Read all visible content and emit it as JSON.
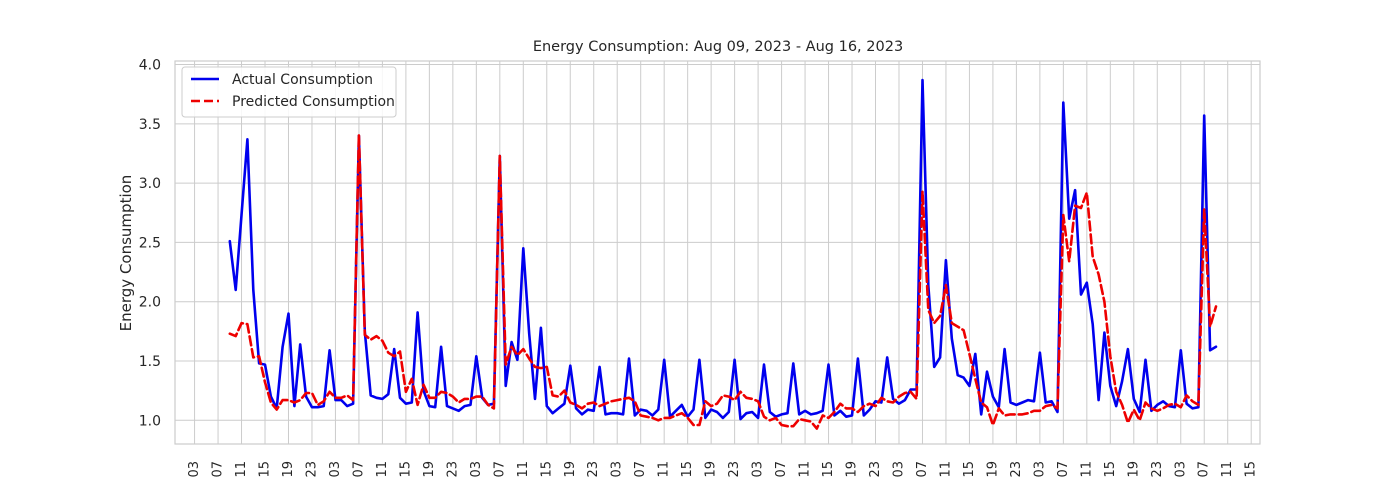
{
  "chart_data": {
    "type": "line",
    "title": "Energy Consumption: Aug 09, 2023 - Aug 16, 2023",
    "xlabel": "",
    "ylabel": "Energy Consumption",
    "ylim": [
      0.8,
      4.03
    ],
    "yticks": [
      1.0,
      1.5,
      2.0,
      2.5,
      3.0,
      3.5,
      4.0
    ],
    "ytick_labels": [
      "1.0",
      "1.5",
      "2.0",
      "2.5",
      "3.0",
      "3.5",
      "4.0"
    ],
    "xlim": [
      "2023-08-08T23:40",
      "2023-08-16T16:30"
    ],
    "xticks": [
      "2023-08-09T03:00",
      "2023-08-09T07:00",
      "2023-08-09T11:00",
      "2023-08-09T15:00",
      "2023-08-09T19:00",
      "2023-08-09T23:00",
      "2023-08-10T03:00",
      "2023-08-10T07:00",
      "2023-08-10T11:00",
      "2023-08-10T15:00",
      "2023-08-10T19:00",
      "2023-08-10T23:00",
      "2023-08-11T03:00",
      "2023-08-11T07:00",
      "2023-08-11T11:00",
      "2023-08-11T15:00",
      "2023-08-11T19:00",
      "2023-08-11T23:00",
      "2023-08-12T03:00",
      "2023-08-12T07:00",
      "2023-08-12T11:00",
      "2023-08-12T15:00",
      "2023-08-12T19:00",
      "2023-08-12T23:00",
      "2023-08-13T03:00",
      "2023-08-13T07:00",
      "2023-08-13T11:00",
      "2023-08-13T15:00",
      "2023-08-13T19:00",
      "2023-08-13T23:00",
      "2023-08-14T03:00",
      "2023-08-14T07:00",
      "2023-08-14T11:00",
      "2023-08-14T15:00",
      "2023-08-14T19:00",
      "2023-08-14T23:00",
      "2023-08-15T03:00",
      "2023-08-15T07:00",
      "2023-08-15T11:00",
      "2023-08-15T15:00",
      "2023-08-15T19:00",
      "2023-08-15T23:00",
      "2023-08-16T03:00",
      "2023-08-16T07:00",
      "2023-08-16T11:00",
      "2023-08-16T15:00"
    ],
    "xtick_labels": [
      "03",
      "07",
      "11",
      "15",
      "19",
      "23",
      "03",
      "07",
      "11",
      "15",
      "19",
      "23",
      "03",
      "07",
      "11",
      "15",
      "19",
      "23",
      "03",
      "07",
      "11",
      "15",
      "19",
      "23",
      "03",
      "07",
      "11",
      "15",
      "19",
      "23",
      "03",
      "07",
      "11",
      "15",
      "19",
      "23",
      "03",
      "07",
      "11",
      "15",
      "19",
      "23",
      "03",
      "07",
      "11",
      "15"
    ],
    "grid": true,
    "legend": {
      "position": "top-left",
      "entries": [
        "Actual Consumption",
        "Predicted Consumption"
      ]
    },
    "x": [
      "2023-08-09T09:00",
      "2023-08-09T10:00",
      "2023-08-09T11:00",
      "2023-08-09T12:00",
      "2023-08-09T13:00",
      "2023-08-09T14:00",
      "2023-08-09T15:00",
      "2023-08-09T16:00",
      "2023-08-09T17:00",
      "2023-08-09T18:00",
      "2023-08-09T19:00",
      "2023-08-09T20:00",
      "2023-08-09T21:00",
      "2023-08-09T22:00",
      "2023-08-09T23:00",
      "2023-08-10T00:00",
      "2023-08-10T01:00",
      "2023-08-10T02:00",
      "2023-08-10T03:00",
      "2023-08-10T04:00",
      "2023-08-10T05:00",
      "2023-08-10T06:00",
      "2023-08-10T07:00",
      "2023-08-10T08:00",
      "2023-08-10T09:00",
      "2023-08-10T10:00",
      "2023-08-10T11:00",
      "2023-08-10T12:00",
      "2023-08-10T13:00",
      "2023-08-10T14:00",
      "2023-08-10T15:00",
      "2023-08-10T16:00",
      "2023-08-10T17:00",
      "2023-08-10T18:00",
      "2023-08-10T19:00",
      "2023-08-10T20:00",
      "2023-08-10T21:00",
      "2023-08-10T22:00",
      "2023-08-10T23:00",
      "2023-08-11T00:00",
      "2023-08-11T01:00",
      "2023-08-11T02:00",
      "2023-08-11T03:00",
      "2023-08-11T04:00",
      "2023-08-11T05:00",
      "2023-08-11T06:00",
      "2023-08-11T07:00",
      "2023-08-11T08:00",
      "2023-08-11T09:00",
      "2023-08-11T10:00",
      "2023-08-11T11:00",
      "2023-08-11T12:00",
      "2023-08-11T13:00",
      "2023-08-11T14:00",
      "2023-08-11T15:00",
      "2023-08-11T16:00",
      "2023-08-11T17:00",
      "2023-08-11T18:00",
      "2023-08-11T19:00",
      "2023-08-11T20:00",
      "2023-08-11T21:00",
      "2023-08-11T22:00",
      "2023-08-11T23:00",
      "2023-08-12T00:00",
      "2023-08-12T01:00",
      "2023-08-12T02:00",
      "2023-08-12T03:00",
      "2023-08-12T04:00",
      "2023-08-12T05:00",
      "2023-08-12T06:00",
      "2023-08-12T07:00",
      "2023-08-12T08:00",
      "2023-08-12T09:00",
      "2023-08-12T10:00",
      "2023-08-12T11:00",
      "2023-08-12T12:00",
      "2023-08-12T13:00",
      "2023-08-12T14:00",
      "2023-08-12T15:00",
      "2023-08-12T16:00",
      "2023-08-12T17:00",
      "2023-08-12T18:00",
      "2023-08-12T19:00",
      "2023-08-12T20:00",
      "2023-08-12T21:00",
      "2023-08-12T22:00",
      "2023-08-12T23:00",
      "2023-08-13T00:00",
      "2023-08-13T01:00",
      "2023-08-13T02:00",
      "2023-08-13T03:00",
      "2023-08-13T04:00",
      "2023-08-13T05:00",
      "2023-08-13T06:00",
      "2023-08-13T07:00",
      "2023-08-13T08:00",
      "2023-08-13T09:00",
      "2023-08-13T10:00",
      "2023-08-13T11:00",
      "2023-08-13T12:00",
      "2023-08-13T13:00",
      "2023-08-13T14:00",
      "2023-08-13T15:00",
      "2023-08-13T16:00",
      "2023-08-13T17:00",
      "2023-08-13T18:00",
      "2023-08-13T19:00",
      "2023-08-13T20:00",
      "2023-08-13T21:00",
      "2023-08-13T22:00",
      "2023-08-13T23:00",
      "2023-08-14T00:00",
      "2023-08-14T01:00",
      "2023-08-14T02:00",
      "2023-08-14T03:00",
      "2023-08-14T04:00",
      "2023-08-14T05:00",
      "2023-08-14T06:00",
      "2023-08-14T07:00",
      "2023-08-14T08:00",
      "2023-08-14T09:00",
      "2023-08-14T10:00",
      "2023-08-14T11:00",
      "2023-08-14T12:00",
      "2023-08-14T13:00",
      "2023-08-14T14:00",
      "2023-08-14T15:00",
      "2023-08-14T16:00",
      "2023-08-14T17:00",
      "2023-08-14T18:00",
      "2023-08-14T19:00",
      "2023-08-14T20:00",
      "2023-08-14T21:00",
      "2023-08-14T22:00",
      "2023-08-14T23:00",
      "2023-08-15T00:00",
      "2023-08-15T01:00",
      "2023-08-15T02:00",
      "2023-08-15T03:00",
      "2023-08-15T04:00",
      "2023-08-15T05:00",
      "2023-08-15T06:00",
      "2023-08-15T07:00",
      "2023-08-15T08:00",
      "2023-08-15T09:00",
      "2023-08-15T10:00",
      "2023-08-15T11:00",
      "2023-08-15T12:00",
      "2023-08-15T13:00",
      "2023-08-15T14:00",
      "2023-08-15T15:00",
      "2023-08-15T16:00",
      "2023-08-15T17:00",
      "2023-08-15T18:00",
      "2023-08-15T19:00",
      "2023-08-15T20:00",
      "2023-08-15T21:00",
      "2023-08-15T22:00",
      "2023-08-15T23:00",
      "2023-08-16T00:00",
      "2023-08-16T01:00",
      "2023-08-16T02:00",
      "2023-08-16T03:00",
      "2023-08-16T04:00",
      "2023-08-16T05:00",
      "2023-08-16T06:00",
      "2023-08-16T07:00",
      "2023-08-16T08:00",
      "2023-08-16T09:00"
    ],
    "series": [
      {
        "name": "Actual Consumption",
        "color": "#0000ee",
        "style": "solid",
        "values": [
          2.51,
          2.1,
          2.73,
          3.37,
          2.1,
          1.48,
          1.47,
          1.2,
          1.1,
          1.62,
          1.9,
          1.12,
          1.64,
          1.2,
          1.11,
          1.11,
          1.12,
          1.59,
          1.17,
          1.17,
          1.12,
          1.14,
          3.4,
          1.75,
          1.21,
          1.19,
          1.18,
          1.22,
          1.6,
          1.19,
          1.14,
          1.15,
          1.91,
          1.25,
          1.12,
          1.11,
          1.62,
          1.12,
          1.1,
          1.08,
          1.12,
          1.13,
          1.54,
          1.19,
          1.13,
          1.14,
          3.23,
          1.29,
          1.66,
          1.51,
          2.45,
          1.73,
          1.18,
          1.78,
          1.12,
          1.06,
          1.1,
          1.14,
          1.46,
          1.1,
          1.05,
          1.09,
          1.08,
          1.45,
          1.05,
          1.06,
          1.06,
          1.05,
          1.52,
          1.04,
          1.09,
          1.08,
          1.04,
          1.09,
          1.51,
          1.03,
          1.08,
          1.13,
          1.03,
          1.09,
          1.51,
          1.02,
          1.09,
          1.07,
          1.02,
          1.07,
          1.51,
          1.01,
          1.06,
          1.07,
          1.02,
          1.47,
          1.07,
          1.03,
          1.05,
          1.06,
          1.48,
          1.05,
          1.08,
          1.05,
          1.06,
          1.08,
          1.47,
          1.04,
          1.08,
          1.03,
          1.04,
          1.52,
          1.04,
          1.09,
          1.16,
          1.15,
          1.53,
          1.18,
          1.14,
          1.17,
          1.26,
          1.26,
          3.87,
          2.14,
          1.45,
          1.53,
          2.35,
          1.69,
          1.38,
          1.36,
          1.29,
          1.56,
          1.05,
          1.41,
          1.2,
          1.11,
          1.6,
          1.15,
          1.13,
          1.15,
          1.17,
          1.16,
          1.57,
          1.15,
          1.16,
          1.07,
          3.68,
          2.7,
          2.94,
          2.06,
          2.16,
          1.81,
          1.17,
          1.74,
          1.29,
          1.12,
          1.33,
          1.6,
          1.18,
          1.07,
          1.51,
          1.08,
          1.13,
          1.16,
          1.12,
          1.11,
          1.59,
          1.14,
          1.1,
          1.11,
          3.57,
          1.59,
          1.62
        ]
      },
      {
        "name": "Predicted Consumption",
        "color": "#ee0000",
        "style": "dashed",
        "values": [
          1.73,
          1.71,
          1.82,
          1.81,
          1.53,
          1.54,
          1.32,
          1.15,
          1.09,
          1.17,
          1.17,
          1.15,
          1.17,
          1.23,
          1.23,
          1.13,
          1.16,
          1.24,
          1.19,
          1.19,
          1.21,
          1.17,
          3.41,
          1.72,
          1.68,
          1.71,
          1.67,
          1.57,
          1.54,
          1.58,
          1.24,
          1.35,
          1.13,
          1.3,
          1.19,
          1.19,
          1.24,
          1.23,
          1.2,
          1.15,
          1.18,
          1.18,
          1.2,
          1.2,
          1.13,
          1.1,
          3.23,
          1.47,
          1.62,
          1.55,
          1.6,
          1.52,
          1.45,
          1.44,
          1.45,
          1.21,
          1.2,
          1.25,
          1.15,
          1.13,
          1.1,
          1.14,
          1.15,
          1.12,
          1.14,
          1.16,
          1.17,
          1.18,
          1.19,
          1.16,
          1.04,
          1.03,
          1.02,
          1.0,
          1.02,
          1.02,
          1.04,
          1.06,
          1.02,
          0.96,
          0.96,
          1.16,
          1.12,
          1.14,
          1.21,
          1.2,
          1.17,
          1.24,
          1.19,
          1.18,
          1.16,
          1.03,
          1.0,
          1.02,
          0.96,
          0.95,
          0.95,
          1.01,
          1.0,
          0.99,
          0.93,
          1.04,
          1.02,
          1.07,
          1.14,
          1.1,
          1.1,
          1.07,
          1.12,
          1.14,
          1.12,
          1.19,
          1.16,
          1.15,
          1.2,
          1.23,
          1.24,
          1.18,
          2.93,
          1.93,
          1.82,
          1.88,
          2.14,
          1.82,
          1.79,
          1.76,
          1.56,
          1.35,
          1.15,
          1.11,
          0.96,
          1.1,
          1.04,
          1.05,
          1.05,
          1.05,
          1.06,
          1.08,
          1.08,
          1.12,
          1.13,
          1.1,
          2.73,
          2.34,
          2.81,
          2.79,
          2.92,
          2.38,
          2.23,
          2.0,
          1.54,
          1.24,
          1.13,
          0.98,
          1.09,
          1.0,
          1.15,
          1.1,
          1.08,
          1.1,
          1.13,
          1.14,
          1.11,
          1.21,
          1.16,
          1.13,
          2.78,
          1.79,
          1.96
        ]
      }
    ]
  }
}
